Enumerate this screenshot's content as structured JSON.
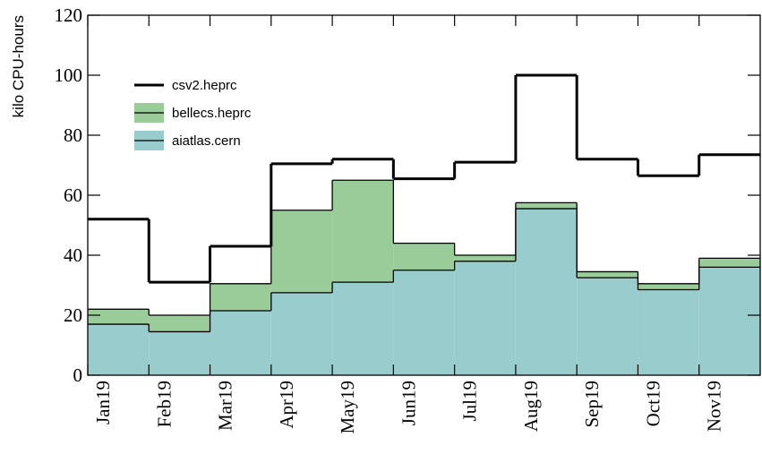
{
  "chart_data": {
    "type": "stacked_step",
    "y_label": "kilo CPU-hours",
    "categories": [
      "Jan19",
      "Feb19",
      "Mar19",
      "Apr19",
      "May19",
      "Jun19",
      "Jul19",
      "Aug19",
      "Sep19",
      "Oct19",
      "Nov19"
    ],
    "series": [
      {
        "name": "aiatlas.cern",
        "color": "#99cccc",
        "values": [
          17,
          14.5,
          21.5,
          27.5,
          31,
          35,
          38,
          55.5,
          32.5,
          28.5,
          36
        ]
      },
      {
        "name": "bellecs.heprc",
        "color": "#99cc99",
        "values": [
          5,
          5.5,
          9,
          27.5,
          34,
          9,
          2,
          2,
          2,
          2,
          3
        ]
      },
      {
        "name": "csv2.heprc",
        "color": "#ffffff",
        "values": [
          30,
          11,
          12.5,
          15.5,
          7,
          21.5,
          31,
          42.5,
          37.5,
          36,
          34.5
        ]
      }
    ],
    "ylim": [
      0,
      120
    ],
    "yticks": [
      0,
      20,
      40,
      60,
      80,
      100,
      120
    ]
  }
}
